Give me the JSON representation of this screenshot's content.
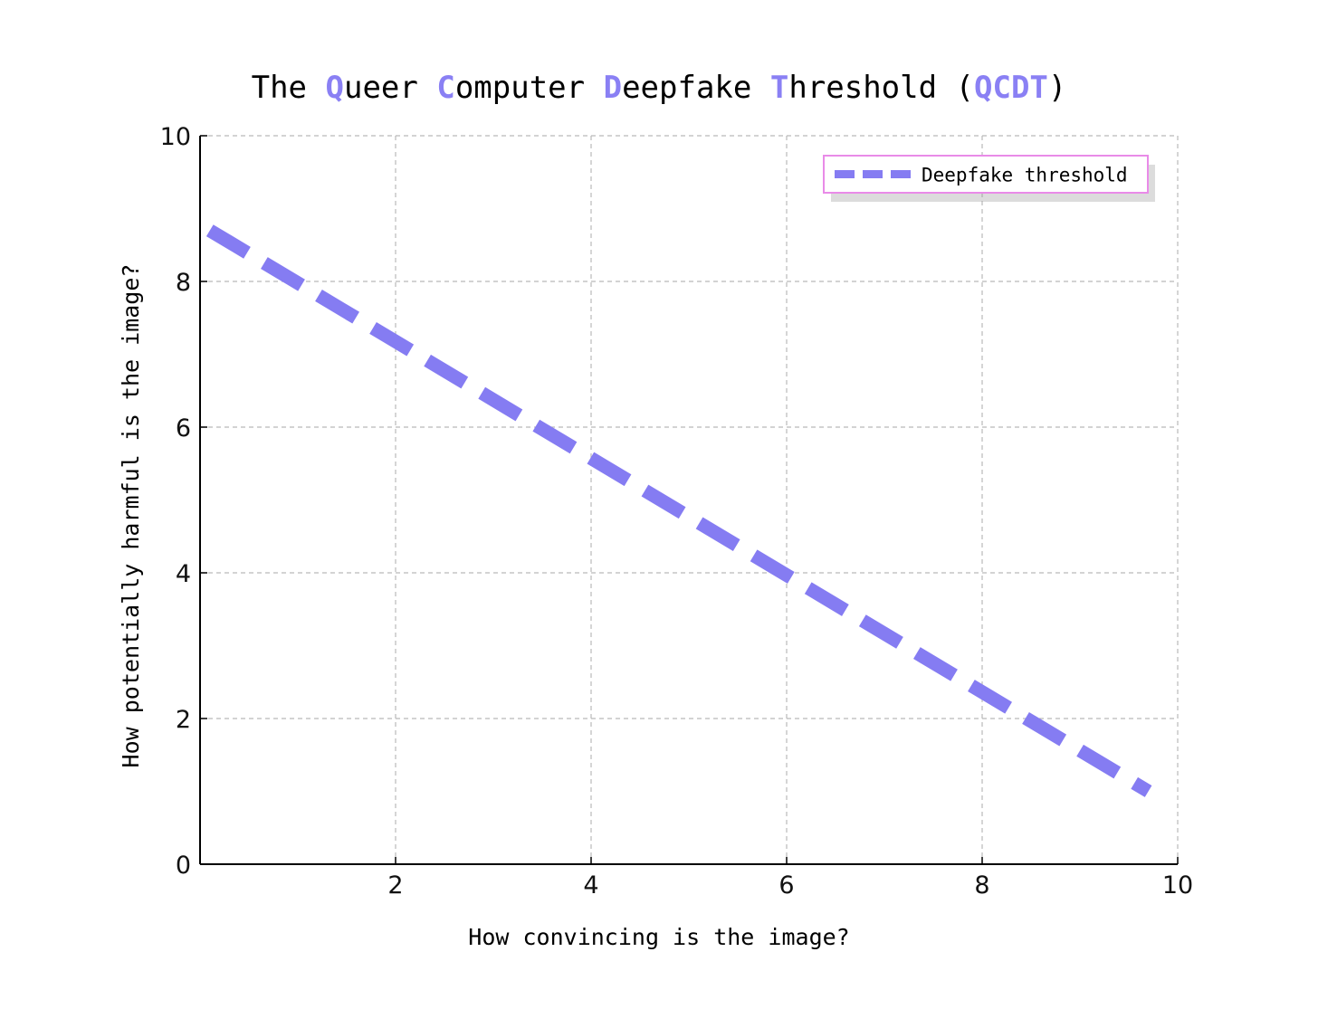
{
  "chart_data": {
    "type": "line",
    "title_parts": [
      {
        "text": "The ",
        "accent": false
      },
      {
        "text": "Q",
        "accent": true
      },
      {
        "text": "ueer ",
        "accent": false
      },
      {
        "text": "C",
        "accent": true
      },
      {
        "text": "omputer ",
        "accent": false
      },
      {
        "text": "D",
        "accent": true
      },
      {
        "text": "eepfake ",
        "accent": false
      },
      {
        "text": "T",
        "accent": true
      },
      {
        "text": "hreshold (",
        "accent": false
      },
      {
        "text": "QCDT",
        "accent": true
      },
      {
        "text": ")",
        "accent": false
      }
    ],
    "xlabel": "How convincing is the image?",
    "ylabel": "How potentially harmful is the image?",
    "xlim": [
      0,
      10
    ],
    "ylim": [
      0,
      10
    ],
    "xticks": [
      2,
      4,
      6,
      8,
      10
    ],
    "yticks": [
      0,
      2,
      4,
      6,
      8,
      10
    ],
    "grid": true,
    "legend_position": "top-right",
    "series": [
      {
        "name": "Deepfake threshold",
        "style": "dashed",
        "color": "#857cf2",
        "x": [
          0.1,
          9.7
        ],
        "y": [
          8.7,
          1.0
        ]
      }
    ]
  },
  "colors": {
    "accent": "#8a80f4",
    "legend_border": "#e98be8"
  }
}
